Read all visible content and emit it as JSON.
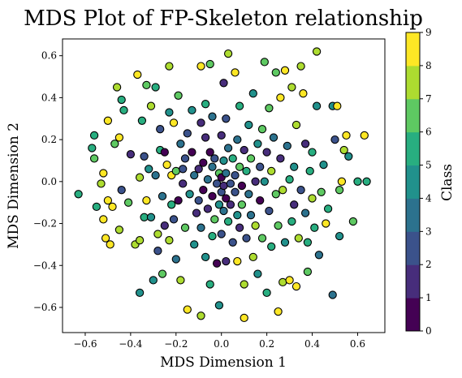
{
  "chart_data": {
    "type": "scatter",
    "title": "MDS Plot of FP-Skeleton relationship",
    "xlabel": "MDS Dimension 1",
    "ylabel": "MDS Dimension 2",
    "xlim": [
      -0.7,
      0.72
    ],
    "ylim": [
      -0.72,
      0.68
    ],
    "x_ticks": [
      "−0.6",
      "−0.4",
      "−0.2",
      "0.0",
      "0.2",
      "0.4",
      "0.6"
    ],
    "y_ticks": [
      "−0.6",
      "−0.4",
      "−0.2",
      "0.0",
      "0.2",
      "0.4",
      "0.6"
    ],
    "grid": false,
    "colorbar": {
      "label": "Class",
      "range": [
        0,
        9
      ],
      "ticks": [
        "0",
        "1",
        "2",
        "3",
        "4",
        "5",
        "6",
        "7",
        "8",
        "9"
      ],
      "colors": [
        "#440154",
        "#472d7b",
        "#3b528b",
        "#2c728e",
        "#21918c",
        "#28ae80",
        "#5ec962",
        "#addc30",
        "#fde725"
      ]
    },
    "marker": {
      "edge_color": "#000000"
    },
    "points": [
      {
        "x": -0.63,
        "y": -0.06,
        "c": 5
      },
      {
        "x": -0.56,
        "y": 0.22,
        "c": 5
      },
      {
        "x": -0.57,
        "y": 0.16,
        "c": 5
      },
      {
        "x": -0.56,
        "y": 0.11,
        "c": 6
      },
      {
        "x": -0.55,
        "y": -0.12,
        "c": 5
      },
      {
        "x": -0.53,
        "y": -0.01,
        "c": 7
      },
      {
        "x": -0.52,
        "y": 0.04,
        "c": 9
      },
      {
        "x": -0.52,
        "y": -0.18,
        "c": 8
      },
      {
        "x": -0.51,
        "y": -0.27,
        "c": 9
      },
      {
        "x": -0.5,
        "y": -0.09,
        "c": 9
      },
      {
        "x": -0.49,
        "y": -0.3,
        "c": 9
      },
      {
        "x": -0.5,
        "y": 0.29,
        "c": 9
      },
      {
        "x": -0.48,
        "y": -0.12,
        "c": 9
      },
      {
        "x": -0.47,
        "y": 0.18,
        "c": 6
      },
      {
        "x": -0.46,
        "y": 0.45,
        "c": 7
      },
      {
        "x": -0.45,
        "y": 0.21,
        "c": 8
      },
      {
        "x": -0.45,
        "y": -0.23,
        "c": 7
      },
      {
        "x": -0.44,
        "y": 0.39,
        "c": 5
      },
      {
        "x": -0.44,
        "y": -0.04,
        "c": 2
      },
      {
        "x": -0.43,
        "y": 0.34,
        "c": 5
      },
      {
        "x": -0.41,
        "y": -0.1,
        "c": 6
      },
      {
        "x": -0.4,
        "y": 0.13,
        "c": 1
      },
      {
        "x": -0.38,
        "y": -0.3,
        "c": 7
      },
      {
        "x": -0.37,
        "y": 0.51,
        "c": 9
      },
      {
        "x": -0.36,
        "y": 0.02,
        "c": 7
      },
      {
        "x": -0.36,
        "y": -0.28,
        "c": 7
      },
      {
        "x": -0.36,
        "y": -0.53,
        "c": 4
      },
      {
        "x": -0.35,
        "y": 0.29,
        "c": 5
      },
      {
        "x": -0.34,
        "y": 0.12,
        "c": 2
      },
      {
        "x": -0.34,
        "y": -0.17,
        "c": 5
      },
      {
        "x": -0.33,
        "y": -0.09,
        "c": 8
      },
      {
        "x": -0.33,
        "y": 0.46,
        "c": 6
      },
      {
        "x": -0.32,
        "y": 0.06,
        "c": 4
      },
      {
        "x": -0.31,
        "y": 0.36,
        "c": 7
      },
      {
        "x": -0.31,
        "y": -0.17,
        "c": 4
      },
      {
        "x": -0.3,
        "y": -0.47,
        "c": 4
      },
      {
        "x": -0.29,
        "y": 0.45,
        "c": 5
      },
      {
        "x": -0.29,
        "y": 0.03,
        "c": 3
      },
      {
        "x": -0.28,
        "y": -0.25,
        "c": 7
      },
      {
        "x": -0.28,
        "y": -0.33,
        "c": 2
      },
      {
        "x": -0.27,
        "y": 0.25,
        "c": 2
      },
      {
        "x": -0.27,
        "y": 0.15,
        "c": 5
      },
      {
        "x": -0.26,
        "y": -0.07,
        "c": 3
      },
      {
        "x": -0.26,
        "y": -0.44,
        "c": 6
      },
      {
        "x": -0.25,
        "y": 0.14,
        "c": 0
      },
      {
        "x": -0.25,
        "y": -0.21,
        "c": 1
      },
      {
        "x": -0.23,
        "y": 0.55,
        "c": 7
      },
      {
        "x": -0.24,
        "y": 0.08,
        "c": 8
      },
      {
        "x": -0.23,
        "y": -0.28,
        "c": 7
      },
      {
        "x": -0.23,
        "y": 0.33,
        "c": 4
      },
      {
        "x": -0.22,
        "y": 0.03,
        "c": 8
      },
      {
        "x": -0.22,
        "y": -0.11,
        "c": 5
      },
      {
        "x": -0.21,
        "y": 0.28,
        "c": 9
      },
      {
        "x": -0.21,
        "y": -0.18,
        "c": 2
      },
      {
        "x": -0.2,
        "y": 0.05,
        "c": 6
      },
      {
        "x": -0.2,
        "y": -0.37,
        "c": 3
      },
      {
        "x": -0.19,
        "y": 0.41,
        "c": 6
      },
      {
        "x": -0.19,
        "y": -0.09,
        "c": 0
      },
      {
        "x": -0.18,
        "y": 0.18,
        "c": 3
      },
      {
        "x": -0.18,
        "y": -0.47,
        "c": 7
      },
      {
        "x": -0.17,
        "y": 0.06,
        "c": 2
      },
      {
        "x": -0.17,
        "y": -0.01,
        "c": 1
      },
      {
        "x": -0.16,
        "y": -0.22,
        "c": 6
      },
      {
        "x": -0.16,
        "y": 0.11,
        "c": 2
      },
      {
        "x": -0.15,
        "y": -0.61,
        "c": 9
      },
      {
        "x": -0.15,
        "y": 0.23,
        "c": 2
      },
      {
        "x": -0.14,
        "y": -0.06,
        "c": 4
      },
      {
        "x": -0.13,
        "y": 0.34,
        "c": 4
      },
      {
        "x": -0.13,
        "y": 0.14,
        "c": 0
      },
      {
        "x": -0.12,
        "y": -0.3,
        "c": 4
      },
      {
        "x": -0.12,
        "y": 0.03,
        "c": 3
      },
      {
        "x": -0.11,
        "y": -0.15,
        "c": 1
      },
      {
        "x": -0.1,
        "y": 0.06,
        "c": 1
      },
      {
        "x": -0.1,
        "y": -0.09,
        "c": 2
      },
      {
        "x": -0.09,
        "y": 0.55,
        "c": 9
      },
      {
        "x": -0.09,
        "y": 0.28,
        "c": 1
      },
      {
        "x": -0.09,
        "y": -0.22,
        "c": 3
      },
      {
        "x": -0.08,
        "y": 0.09,
        "c": 0
      },
      {
        "x": -0.08,
        "y": -0.04,
        "c": 0
      },
      {
        "x": -0.09,
        "y": -0.64,
        "c": 7
      },
      {
        "x": -0.07,
        "y": 0.37,
        "c": 5
      },
      {
        "x": -0.07,
        "y": 0.21,
        "c": 1
      },
      {
        "x": -0.07,
        "y": -0.36,
        "c": 4
      },
      {
        "x": -0.06,
        "y": 0.01,
        "c": 3
      },
      {
        "x": -0.06,
        "y": -0.13,
        "c": 1
      },
      {
        "x": -0.05,
        "y": 0.56,
        "c": 6
      },
      {
        "x": -0.05,
        "y": -0.49,
        "c": 5
      },
      {
        "x": -0.05,
        "y": 0.14,
        "c": 0
      },
      {
        "x": -0.04,
        "y": -0.26,
        "c": 5
      },
      {
        "x": -0.04,
        "y": 0.31,
        "c": 3
      },
      {
        "x": -0.04,
        "y": 0.07,
        "c": 3
      },
      {
        "x": -0.04,
        "y": -0.07,
        "c": 0
      },
      {
        "x": -0.03,
        "y": -0.18,
        "c": 6
      },
      {
        "x": -0.03,
        "y": 0.11,
        "c": 2
      },
      {
        "x": -0.02,
        "y": -0.01,
        "c": 2
      },
      {
        "x": -0.02,
        "y": -0.39,
        "c": 0
      },
      {
        "x": -0.01,
        "y": 0.04,
        "c": 6
      },
      {
        "x": -0.01,
        "y": -0.11,
        "c": 4
      },
      {
        "x": -0.01,
        "y": -0.59,
        "c": 4
      },
      {
        "x": 0.0,
        "y": 0.22,
        "c": 1
      },
      {
        "x": 0.0,
        "y": 0.02,
        "c": 0
      },
      {
        "x": 0.0,
        "y": -0.05,
        "c": 2
      },
      {
        "x": 0.0,
        "y": -0.25,
        "c": 2
      },
      {
        "x": 0.01,
        "y": 0.47,
        "c": 1
      },
      {
        "x": 0.01,
        "y": 0.1,
        "c": 4
      },
      {
        "x": 0.01,
        "y": -0.02,
        "c": 1
      },
      {
        "x": 0.01,
        "y": -0.14,
        "c": 3
      },
      {
        "x": 0.02,
        "y": 0.3,
        "c": 2
      },
      {
        "x": 0.02,
        "y": 0.04,
        "c": 3
      },
      {
        "x": 0.02,
        "y": -0.08,
        "c": 0
      },
      {
        "x": 0.02,
        "y": -0.38,
        "c": 1
      },
      {
        "x": 0.03,
        "y": 0.61,
        "c": 7
      },
      {
        "x": 0.03,
        "y": 0.16,
        "c": 3
      },
      {
        "x": 0.03,
        "y": -0.19,
        "c": 5
      },
      {
        "x": 0.04,
        "y": -0.01,
        "c": 2
      },
      {
        "x": 0.04,
        "y": -0.11,
        "c": 1
      },
      {
        "x": 0.05,
        "y": -0.29,
        "c": 2
      },
      {
        "x": 0.05,
        "y": 0.11,
        "c": 5
      },
      {
        "x": 0.06,
        "y": 0.03,
        "c": 2
      },
      {
        "x": 0.06,
        "y": -0.05,
        "c": 2
      },
      {
        "x": 0.06,
        "y": 0.52,
        "c": 9
      },
      {
        "x": 0.07,
        "y": -0.16,
        "c": 4
      },
      {
        "x": 0.07,
        "y": 0.2,
        "c": 3
      },
      {
        "x": 0.07,
        "y": -0.38,
        "c": 8
      },
      {
        "x": 0.08,
        "y": 0.07,
        "c": 6
      },
      {
        "x": 0.08,
        "y": -0.22,
        "c": 1
      },
      {
        "x": 0.08,
        "y": 0.36,
        "c": 5
      },
      {
        "x": 0.09,
        "y": -0.02,
        "c": 0
      },
      {
        "x": 0.09,
        "y": -0.11,
        "c": 6
      },
      {
        "x": 0.1,
        "y": 0.15,
        "c": 1
      },
      {
        "x": 0.1,
        "y": -0.49,
        "c": 7
      },
      {
        "x": 0.1,
        "y": -0.65,
        "c": 9
      },
      {
        "x": 0.11,
        "y": 0.05,
        "c": 5
      },
      {
        "x": 0.11,
        "y": -0.27,
        "c": 2
      },
      {
        "x": 0.12,
        "y": 0.27,
        "c": 4
      },
      {
        "x": 0.12,
        "y": -0.06,
        "c": 3
      },
      {
        "x": 0.13,
        "y": -0.16,
        "c": 3
      },
      {
        "x": 0.13,
        "y": 0.11,
        "c": 6
      },
      {
        "x": 0.14,
        "y": 0.42,
        "c": 4
      },
      {
        "x": 0.14,
        "y": -0.36,
        "c": 7
      },
      {
        "x": 0.15,
        "y": 0.0,
        "c": 1
      },
      {
        "x": 0.15,
        "y": -0.21,
        "c": 7
      },
      {
        "x": 0.16,
        "y": 0.18,
        "c": 4
      },
      {
        "x": 0.16,
        "y": -0.44,
        "c": 4
      },
      {
        "x": 0.17,
        "y": 0.07,
        "c": 2
      },
      {
        "x": 0.17,
        "y": -0.09,
        "c": 0
      },
      {
        "x": 0.18,
        "y": 0.25,
        "c": 6
      },
      {
        "x": 0.18,
        "y": -0.27,
        "c": 6
      },
      {
        "x": 0.19,
        "y": 0.57,
        "c": 6
      },
      {
        "x": 0.19,
        "y": 0.0,
        "c": 4
      },
      {
        "x": 0.2,
        "y": -0.53,
        "c": 5
      },
      {
        "x": 0.2,
        "y": 0.14,
        "c": 1
      },
      {
        "x": 0.21,
        "y": -0.14,
        "c": 2
      },
      {
        "x": 0.21,
        "y": 0.35,
        "c": 6
      },
      {
        "x": 0.22,
        "y": 0.05,
        "c": 7
      },
      {
        "x": 0.22,
        "y": -0.31,
        "c": 5
      },
      {
        "x": 0.23,
        "y": 0.21,
        "c": 3
      },
      {
        "x": 0.24,
        "y": -0.06,
        "c": 6
      },
      {
        "x": 0.24,
        "y": 0.52,
        "c": 6
      },
      {
        "x": 0.25,
        "y": -0.21,
        "c": 6
      },
      {
        "x": 0.25,
        "y": -0.62,
        "c": 9
      },
      {
        "x": 0.26,
        "y": 0.4,
        "c": 9
      },
      {
        "x": 0.26,
        "y": 0.11,
        "c": 1
      },
      {
        "x": 0.27,
        "y": -0.04,
        "c": 7
      },
      {
        "x": 0.27,
        "y": -0.48,
        "c": 7
      },
      {
        "x": 0.28,
        "y": 0.53,
        "c": 9
      },
      {
        "x": 0.28,
        "y": -0.29,
        "c": 4
      },
      {
        "x": 0.29,
        "y": 0.17,
        "c": 3
      },
      {
        "x": 0.3,
        "y": 0.01,
        "c": 5
      },
      {
        "x": 0.3,
        "y": -0.47,
        "c": 9
      },
      {
        "x": 0.31,
        "y": -0.19,
        "c": 5
      },
      {
        "x": 0.31,
        "y": 0.45,
        "c": 7
      },
      {
        "x": 0.32,
        "y": 0.07,
        "c": 4
      },
      {
        "x": 0.32,
        "y": -0.11,
        "c": 1
      },
      {
        "x": 0.33,
        "y": -0.5,
        "c": 9
      },
      {
        "x": 0.33,
        "y": 0.27,
        "c": 7
      },
      {
        "x": 0.34,
        "y": -0.27,
        "c": 7
      },
      {
        "x": 0.35,
        "y": 0.55,
        "c": 7
      },
      {
        "x": 0.35,
        "y": -0.04,
        "c": 2
      },
      {
        "x": 0.36,
        "y": 0.42,
        "c": 9
      },
      {
        "x": 0.37,
        "y": -0.15,
        "c": 3
      },
      {
        "x": 0.37,
        "y": 0.18,
        "c": 1
      },
      {
        "x": 0.38,
        "y": -0.43,
        "c": 6
      },
      {
        "x": 0.38,
        "y": -0.29,
        "c": 5
      },
      {
        "x": 0.39,
        "y": 0.05,
        "c": 5
      },
      {
        "x": 0.4,
        "y": 0.14,
        "c": 5
      },
      {
        "x": 0.4,
        "y": -0.08,
        "c": 7
      },
      {
        "x": 0.41,
        "y": -0.22,
        "c": 5
      },
      {
        "x": 0.42,
        "y": 0.62,
        "c": 7
      },
      {
        "x": 0.42,
        "y": 0.36,
        "c": 4
      },
      {
        "x": 0.43,
        "y": -0.35,
        "c": 3
      },
      {
        "x": 0.44,
        "y": -0.05,
        "c": 6
      },
      {
        "x": 0.45,
        "y": 0.08,
        "c": 4
      },
      {
        "x": 0.46,
        "y": -0.2,
        "c": 9
      },
      {
        "x": 0.47,
        "y": -0.13,
        "c": 5
      },
      {
        "x": 0.49,
        "y": 0.36,
        "c": 4
      },
      {
        "x": 0.49,
        "y": -0.54,
        "c": 3
      },
      {
        "x": 0.5,
        "y": 0.2,
        "c": 2
      },
      {
        "x": 0.51,
        "y": 0.36,
        "c": 9
      },
      {
        "x": 0.52,
        "y": -0.04,
        "c": 6
      },
      {
        "x": 0.52,
        "y": -0.26,
        "c": 4
      },
      {
        "x": 0.53,
        "y": 0.0,
        "c": 9
      },
      {
        "x": 0.54,
        "y": 0.15,
        "c": 7
      },
      {
        "x": 0.55,
        "y": 0.22,
        "c": 9
      },
      {
        "x": 0.56,
        "y": 0.12,
        "c": 4
      },
      {
        "x": 0.58,
        "y": -0.19,
        "c": 6
      },
      {
        "x": 0.6,
        "y": -0.0,
        "c": 5
      },
      {
        "x": 0.63,
        "y": 0.22,
        "c": 9
      },
      {
        "x": 0.64,
        "y": 0.0,
        "c": 5
      }
    ]
  }
}
